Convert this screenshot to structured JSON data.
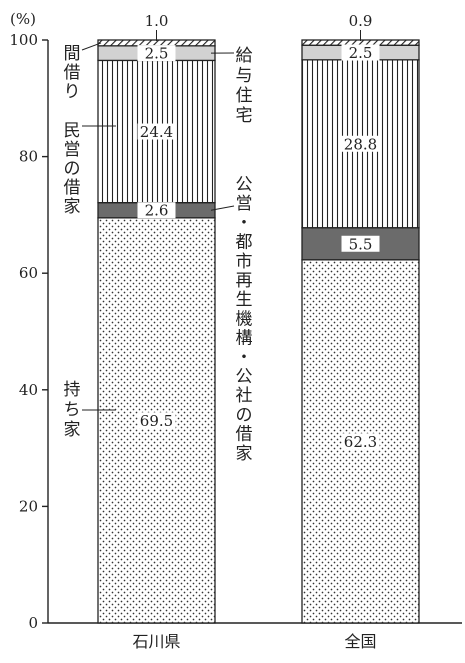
{
  "chart_data": {
    "type": "bar",
    "stacked": true,
    "y_unit_label": "(%)",
    "ylim": [
      0,
      100
    ],
    "yticks": [
      0,
      20,
      40,
      60,
      80,
      100
    ],
    "categories": [
      "石川県",
      "全国"
    ],
    "series": [
      {
        "key": "owned",
        "values": [
          69.5,
          62.3
        ],
        "pattern": "dots",
        "labels": [
          "69.5",
          "62.3"
        ]
      },
      {
        "key": "public",
        "values": [
          2.6,
          5.5
        ],
        "pattern": "dark",
        "labels": [
          "2.6",
          "5.5"
        ]
      },
      {
        "key": "private",
        "values": [
          24.4,
          28.8
        ],
        "pattern": "vlines",
        "labels": [
          "24.4",
          "28.8"
        ]
      },
      {
        "key": "company",
        "values": [
          2.5,
          2.5
        ],
        "pattern": "light",
        "labels": [
          "2.5",
          "2.5"
        ]
      },
      {
        "key": "room",
        "values": [
          1.0,
          0.9
        ],
        "pattern": "hatch",
        "labels": [
          "1.0",
          "0.9"
        ]
      }
    ],
    "annotations": {
      "room": "間借り",
      "private": "民営の借家",
      "owned": "持ち家",
      "company": "給与住宅",
      "public": "公営・都市再生機構・公社の借家"
    },
    "colors": {
      "public_fill": "#6b6b6b",
      "company_fill": "#d2d2d2",
      "ink": "#222222"
    },
    "grid": false,
    "legend": "none"
  }
}
